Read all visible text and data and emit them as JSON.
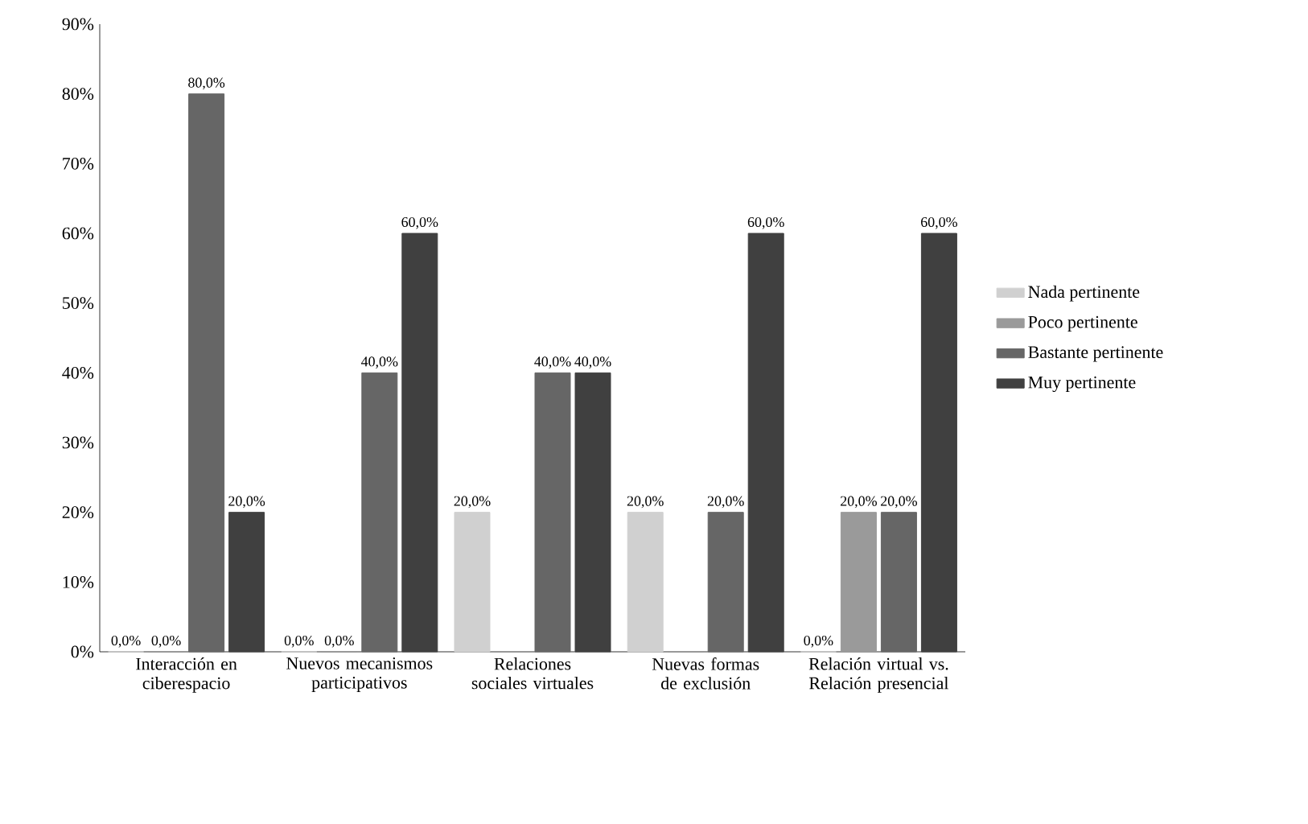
{
  "chart_data": {
    "type": "bar",
    "categories": [
      "Interacción en ciberespacio",
      "Nuevos mecanismos participativos",
      "Relaciones sociales virtuales",
      "Nuevas formas de exclusión",
      "Relación virtual vs. Relación presencial"
    ],
    "series": [
      {
        "name": "Nada pertinente",
        "color": "#d0d0d0",
        "values": [
          0,
          0,
          20,
          20,
          0
        ],
        "value_labels": [
          "0,0%",
          "0,0%",
          "20,0%",
          "20,0%",
          "0,0%"
        ]
      },
      {
        "name": "Poco pertinente",
        "color": "#9a9a9a",
        "values": [
          0,
          0,
          0,
          0,
          20
        ],
        "value_labels": [
          "0,0%",
          "0,0%",
          null,
          null,
          "20,0%"
        ]
      },
      {
        "name": "Bastante pertinente",
        "color": "#666666",
        "values": [
          80,
          40,
          40,
          20,
          20
        ],
        "value_labels": [
          "80,0%",
          "40,0%",
          "40,0%",
          "20,0%",
          "20,0%"
        ]
      },
      {
        "name": "Muy pertinente",
        "color": "#404040",
        "values": [
          20,
          60,
          40,
          60,
          60
        ],
        "value_labels": [
          "20,0%",
          "60,0%",
          "40,0%",
          "60,0%",
          "60,0%"
        ]
      }
    ],
    "ylim": [
      0,
      90
    ],
    "yticks": [
      {
        "value": 0,
        "label": "0%"
      },
      {
        "value": 10,
        "label": "10%"
      },
      {
        "value": 20,
        "label": "20%"
      },
      {
        "value": 30,
        "label": "30%"
      },
      {
        "value": 40,
        "label": "40%"
      },
      {
        "value": 50,
        "label": "50%"
      },
      {
        "value": 60,
        "label": "60%"
      },
      {
        "value": 70,
        "label": "70%"
      },
      {
        "value": 80,
        "label": "80%"
      },
      {
        "value": 90,
        "label": "90%"
      }
    ],
    "grid": false,
    "legend": "right"
  }
}
